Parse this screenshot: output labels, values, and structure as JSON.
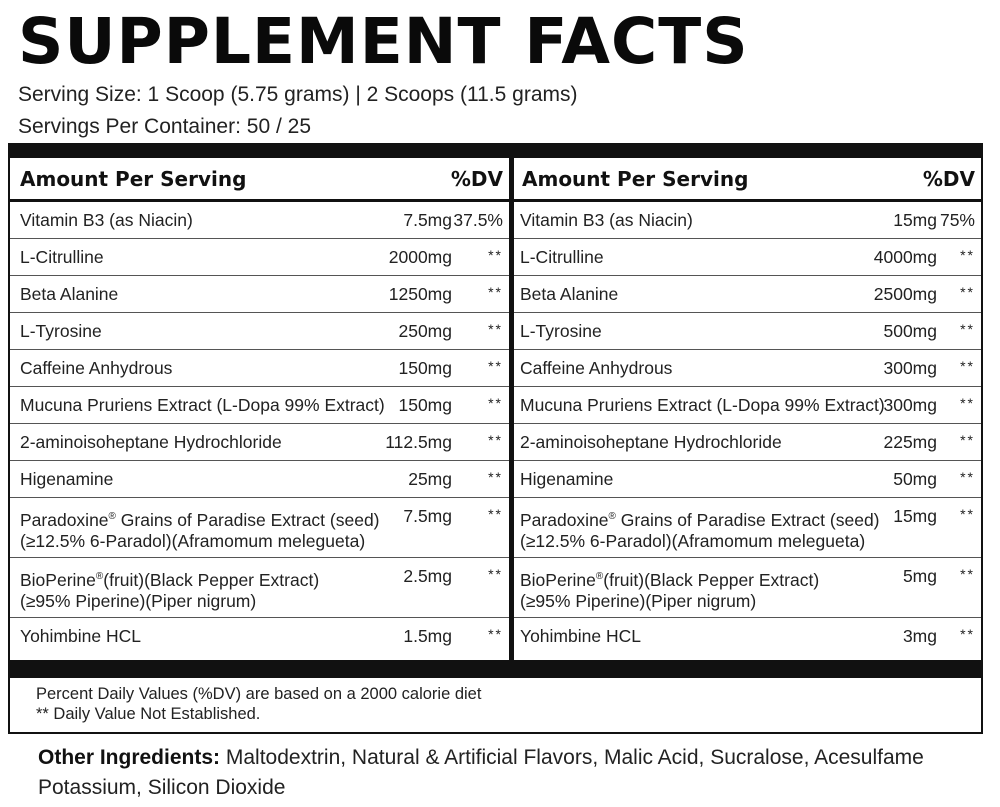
{
  "title": "SUPPLEMENT FACTS",
  "serving_size": "Serving Size: 1 Scoop (5.75 grams) | 2 Scoops (11.5 grams)",
  "servings_per_container": "Servings Per Container: 50 / 25",
  "header": {
    "amount": "Amount Per Serving",
    "dv": "%DV"
  },
  "left_rows": [
    {
      "name": "Vitamin B3 (as Niacin)",
      "amount": "7.5mg",
      "dv": "37.5%"
    },
    {
      "name": "L-Citrulline",
      "amount": "2000mg",
      "dv": "**"
    },
    {
      "name": "Beta Alanine",
      "amount": "1250mg",
      "dv": "**"
    },
    {
      "name": "L-Tyrosine",
      "amount": "250mg",
      "dv": "**"
    },
    {
      "name": "Caffeine Anhydrous",
      "amount": "150mg",
      "dv": "**"
    },
    {
      "name": "Mucuna Pruriens Extract (L-Dopa 99% Extract)",
      "amount": "150mg",
      "dv": "**"
    },
    {
      "name": "2-aminoisoheptane Hydrochloride",
      "amount": "112.5mg",
      "dv": "**"
    },
    {
      "name": "Higenamine",
      "amount": "25mg",
      "dv": "**"
    },
    {
      "name": "Paradoxine",
      "sup": "®",
      "name2": " Grains of Paradise Extract (seed)",
      "line2": "(≥12.5% 6-Paradol)(Aframomum melegueta)",
      "amount": "7.5mg",
      "dv": "**"
    },
    {
      "name": "BioPerine",
      "sup": "®",
      "name2": "(fruit)(Black Pepper Extract)",
      "line2": "(≥95% Piperine)(Piper nigrum)",
      "amount": "2.5mg",
      "dv": "**"
    },
    {
      "name": "Yohimbine HCL",
      "amount": "1.5mg",
      "dv": "**"
    }
  ],
  "right_rows": [
    {
      "name": "Vitamin B3 (as Niacin)",
      "amount": "15mg",
      "dv": "75%"
    },
    {
      "name": "L-Citrulline",
      "amount": "4000mg",
      "dv": "**"
    },
    {
      "name": "Beta Alanine",
      "amount": "2500mg",
      "dv": "**"
    },
    {
      "name": "L-Tyrosine",
      "amount": "500mg",
      "dv": "**"
    },
    {
      "name": "Caffeine Anhydrous",
      "amount": "300mg",
      "dv": "**"
    },
    {
      "name": "Mucuna Pruriens Extract (L-Dopa 99% Extract)",
      "amount": "300mg",
      "dv": "**"
    },
    {
      "name": "2-aminoisoheptane Hydrochloride",
      "amount": "225mg",
      "dv": "**"
    },
    {
      "name": "Higenamine",
      "amount": "50mg",
      "dv": "**"
    },
    {
      "name": "Paradoxine",
      "sup": "®",
      "name2": " Grains of Paradise Extract (seed)",
      "line2": "(≥12.5% 6-Paradol)(Aframomum melegueta)",
      "amount": "15mg",
      "dv": "**"
    },
    {
      "name": "BioPerine",
      "sup": "®",
      "name2": "(fruit)(Black Pepper Extract)",
      "line2": "(≥95% Piperine)(Piper nigrum)",
      "amount": "5mg",
      "dv": "**"
    },
    {
      "name": "Yohimbine HCL",
      "amount": "3mg",
      "dv": "**"
    }
  ],
  "notes": {
    "line1": "Percent Daily Values (%DV) are  based on a 2000 calorie diet",
    "line2": "** Daily Value Not Established."
  },
  "other": {
    "label": "Other Ingredients:",
    "text": " Maltodextrin, Natural & Artificial Flavors, Malic Acid, Sucralose, Acesulfame Potassium, Silicon Dioxide"
  }
}
